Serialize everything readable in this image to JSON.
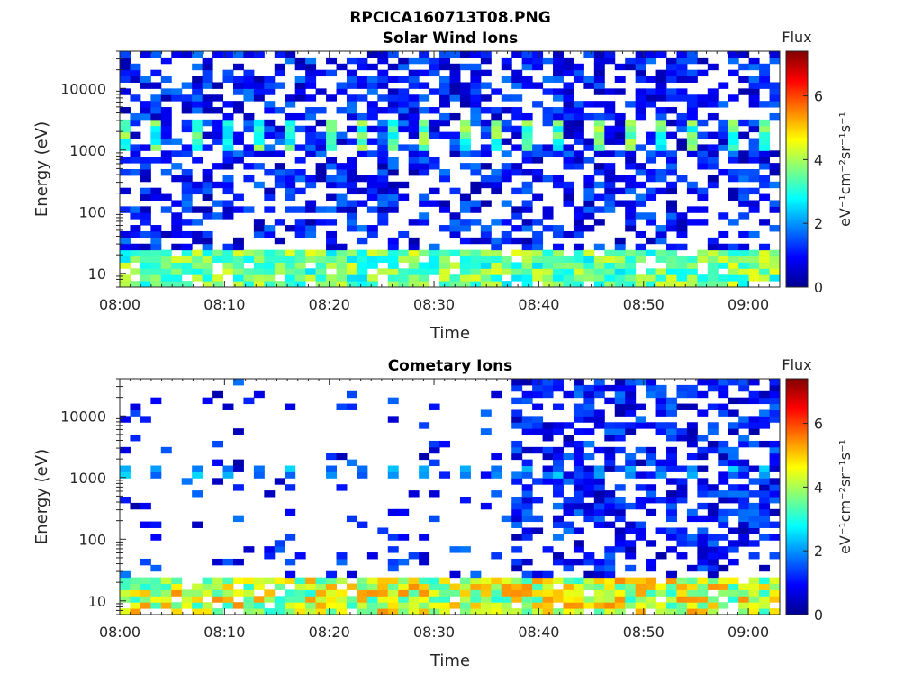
{
  "figure": {
    "title": "RPCICA160713T08.PNG"
  },
  "chart_data": [
    {
      "type": "heatmap",
      "title": "Solar Wind Ions",
      "xlabel": "Time",
      "ylabel": "Energy (eV)",
      "x_ticks": [
        "08:00",
        "08:10",
        "08:20",
        "08:30",
        "08:40",
        "08:50",
        "09:00"
      ],
      "y_ticks": [
        "10",
        "100",
        "1000",
        "10000"
      ],
      "xlim": [
        "08:00",
        "09:03"
      ],
      "ylim": [
        6,
        40000
      ],
      "y_scale": "log",
      "time_bins": 64,
      "energy_bins": 38,
      "pattern": {
        "low_energy_band": {
          "energy_range": [
            6,
            25
          ],
          "flux_range": [
            2.5,
            4.5
          ]
        },
        "peak_band": {
          "energy_range": [
            1000,
            3000
          ],
          "flux_range": [
            2.5,
            4.2
          ],
          "period_minutes": 3.2
        },
        "background": {
          "energy_range": [
            25,
            40000
          ],
          "flux_range": [
            0.3,
            1.8
          ],
          "fill": 0.55
        }
      },
      "colorbar": {
        "label": "Flux",
        "unit": "eV⁻¹cm⁻²sr⁻¹s⁻¹",
        "ticks": [
          "0",
          "2",
          "4",
          "6"
        ],
        "range": [
          0,
          7.4
        ]
      }
    },
    {
      "type": "heatmap",
      "title": "Cometary Ions",
      "xlabel": "Time",
      "ylabel": "Energy (eV)",
      "x_ticks": [
        "08:00",
        "08:10",
        "08:20",
        "08:30",
        "08:40",
        "08:50",
        "09:00"
      ],
      "y_ticks": [
        "10",
        "100",
        "1000",
        "10000"
      ],
      "xlim": [
        "08:00",
        "09:03"
      ],
      "ylim": [
        6,
        40000
      ],
      "y_scale": "log",
      "time_bins": 64,
      "energy_bins": 38,
      "pattern": {
        "low_energy_band": {
          "energy_range": [
            6,
            25
          ],
          "flux_range": [
            3.0,
            5.5
          ]
        },
        "peak_band": {
          "energy_range": [
            1000,
            1500
          ],
          "flux_range": [
            1.5,
            2.5
          ],
          "period_minutes": 3.2
        },
        "sparse_until": "08:37",
        "background": {
          "energy_range": [
            25,
            40000
          ],
          "flux_range": [
            0.3,
            1.8
          ],
          "fill_before": 0.06,
          "fill_after": 0.55
        }
      },
      "colorbar": {
        "label": "Flux",
        "unit": "eV⁻¹cm⁻²sr⁻¹s⁻¹",
        "ticks": [
          "0",
          "2",
          "4",
          "6"
        ],
        "range": [
          0,
          7.4
        ]
      }
    }
  ]
}
